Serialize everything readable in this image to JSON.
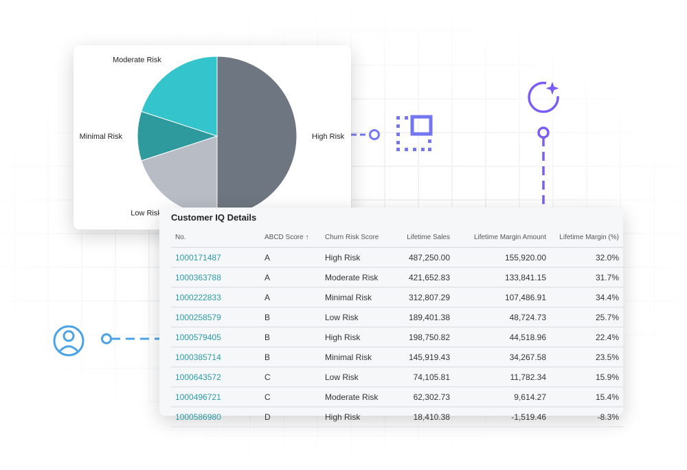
{
  "chart_data": {
    "type": "pie",
    "slices": [
      {
        "label": "High Risk",
        "value": 50,
        "color": "#6e7781"
      },
      {
        "label": "Low Risk",
        "value": 20,
        "color": "#b8bcc4"
      },
      {
        "label": "Minimal Risk",
        "value": 10,
        "color": "#2e9a9e"
      },
      {
        "label": "Moderate Risk",
        "value": 20,
        "color": "#33c4cc"
      }
    ]
  },
  "table": {
    "title": "Customer IQ Details",
    "columns": [
      "No.",
      "ABCD Score ↑",
      "Churn Risk Score",
      "Lifetime Sales",
      "Lifetime Margin Amount",
      "Lifetime Margin (%)"
    ],
    "rows": [
      [
        "1000171487",
        "A",
        "High Risk",
        "487,250.00",
        "155,920.00",
        "32.0%"
      ],
      [
        "1000363788",
        "A",
        "Moderate Risk",
        "421,652.83",
        "133,841.15",
        "31.7%"
      ],
      [
        "1000222833",
        "A",
        "Minimal Risk",
        "312,807.29",
        "107,486.91",
        "34.4%"
      ],
      [
        "1000258579",
        "B",
        "Low Risk",
        "189,401.38",
        "48,724.73",
        "25.7%"
      ],
      [
        "1000579405",
        "B",
        "High Risk",
        "198,750.82",
        "44,518.96",
        "22.4%"
      ],
      [
        "1000385714",
        "B",
        "Minimal Risk",
        "145,919.43",
        "34,267.58",
        "23.5%"
      ],
      [
        "1000643572",
        "C",
        "Low Risk",
        "74,105.81",
        "11,782.34",
        "15.9%"
      ],
      [
        "1000496721",
        "C",
        "Moderate Risk",
        "62,302.73",
        "9,614.27",
        "15.4%"
      ],
      [
        "1000586980",
        "D",
        "High Risk",
        "18,410.38",
        "-1,519.46",
        "-8.3%"
      ]
    ]
  },
  "colors": {
    "accent_purple": "#7b5cf5",
    "accent_indigo": "#7477f0",
    "accent_blue": "#4aa3e8",
    "link": "#2a9aa6"
  },
  "icons": [
    "selection-icon",
    "sparkle-refresh-icon",
    "user-icon"
  ]
}
